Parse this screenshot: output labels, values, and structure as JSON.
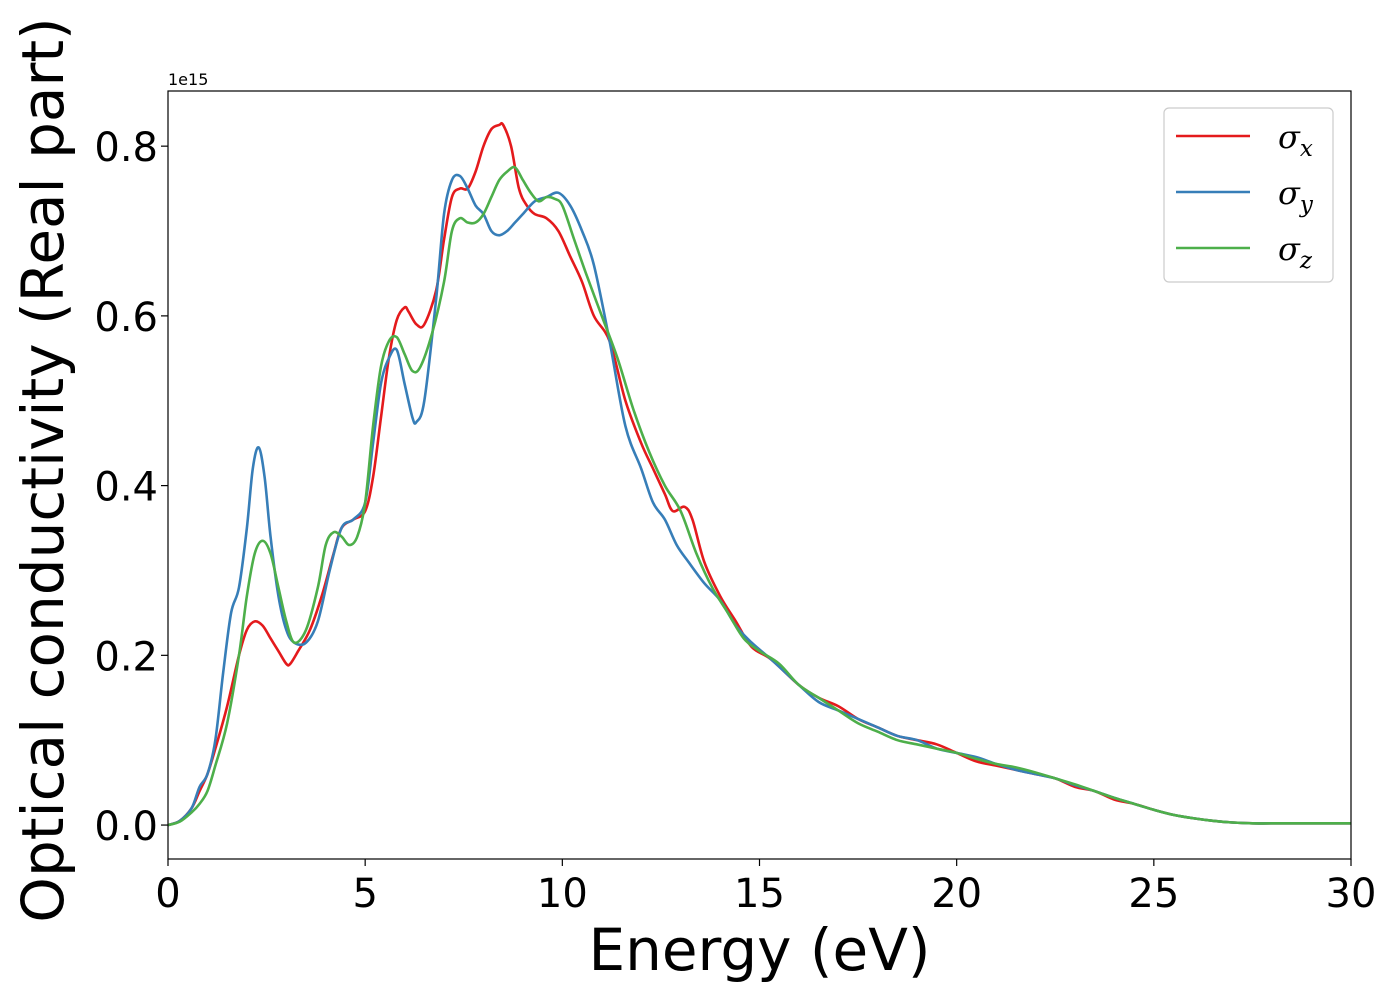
{
  "chart_data": {
    "type": "line",
    "xlabel": "Energy (eV)",
    "ylabel": "Optical conductivity (Real part)",
    "offset_text": "1e15",
    "xlim": [
      0,
      30
    ],
    "ylim": [
      -0.04,
      0.865
    ],
    "xticks": [
      0,
      5,
      10,
      15,
      20,
      25,
      30
    ],
    "xtick_labels": [
      "0",
      "5",
      "10",
      "15",
      "20",
      "25",
      "30"
    ],
    "yticks": [
      0.0,
      0.2,
      0.4,
      0.6,
      0.8
    ],
    "ytick_labels": [
      "0.0",
      "0.2",
      "0.4",
      "0.6",
      "0.8"
    ],
    "grid": false,
    "legend_position": "top-right",
    "series": [
      {
        "name": "σx",
        "label_base": "σ",
        "label_sub": "x",
        "color": "#e41a1c",
        "x": [
          0,
          0.3,
          0.6,
          0.8,
          1.0,
          1.2,
          1.5,
          1.8,
          2.0,
          2.2,
          2.4,
          2.6,
          2.8,
          3.0,
          3.1,
          3.3,
          3.6,
          3.9,
          4.2,
          4.4,
          4.7,
          5.0,
          5.2,
          5.4,
          5.6,
          5.8,
          6.0,
          6.1,
          6.3,
          6.5,
          6.8,
          7.0,
          7.2,
          7.4,
          7.6,
          7.8,
          8.0,
          8.2,
          8.4,
          8.5,
          8.7,
          8.9,
          9.1,
          9.3,
          9.6,
          9.9,
          10.2,
          10.5,
          10.8,
          11.2,
          11.6,
          12.0,
          12.3,
          12.6,
          12.8,
          13.1,
          13.3,
          13.6,
          14.0,
          14.4,
          14.8,
          15.3,
          16.0,
          16.5,
          17.0,
          17.5,
          18.0,
          18.5,
          19.0,
          19.5,
          20.0,
          20.5,
          21.0,
          21.5,
          22.0,
          22.5,
          23.0,
          23.5,
          24.0,
          24.5,
          25.0,
          25.5,
          26.0,
          26.5,
          27.0,
          27.5,
          28.0,
          29.0,
          30.0
        ],
        "y": [
          0.0,
          0.005,
          0.02,
          0.04,
          0.06,
          0.09,
          0.14,
          0.2,
          0.23,
          0.24,
          0.235,
          0.22,
          0.205,
          0.19,
          0.19,
          0.205,
          0.23,
          0.27,
          0.32,
          0.35,
          0.36,
          0.37,
          0.41,
          0.48,
          0.55,
          0.595,
          0.61,
          0.605,
          0.59,
          0.59,
          0.63,
          0.69,
          0.74,
          0.75,
          0.75,
          0.77,
          0.8,
          0.82,
          0.825,
          0.825,
          0.8,
          0.75,
          0.73,
          0.72,
          0.715,
          0.7,
          0.67,
          0.64,
          0.6,
          0.57,
          0.5,
          0.45,
          0.42,
          0.39,
          0.37,
          0.375,
          0.36,
          0.31,
          0.27,
          0.24,
          0.21,
          0.195,
          0.165,
          0.15,
          0.14,
          0.125,
          0.115,
          0.105,
          0.1,
          0.095,
          0.085,
          0.075,
          0.07,
          0.065,
          0.06,
          0.055,
          0.045,
          0.04,
          0.03,
          0.025,
          0.018,
          0.012,
          0.008,
          0.005,
          0.003,
          0.002,
          0.002,
          0.002,
          0.002
        ]
      },
      {
        "name": "σy",
        "label_base": "σ",
        "label_sub": "y",
        "color": "#377eb8",
        "x": [
          0,
          0.3,
          0.6,
          0.8,
          1.0,
          1.2,
          1.4,
          1.6,
          1.8,
          2.0,
          2.15,
          2.3,
          2.45,
          2.6,
          2.8,
          3.0,
          3.2,
          3.5,
          3.8,
          4.1,
          4.4,
          4.7,
          5.0,
          5.2,
          5.4,
          5.6,
          5.8,
          6.0,
          6.2,
          6.3,
          6.5,
          6.8,
          7.0,
          7.2,
          7.4,
          7.6,
          7.8,
          8.0,
          8.2,
          8.4,
          8.6,
          8.8,
          9.0,
          9.3,
          9.6,
          9.9,
          10.2,
          10.5,
          10.8,
          11.2,
          11.6,
          12.0,
          12.3,
          12.6,
          12.9,
          13.2,
          13.6,
          14.0,
          14.4,
          14.8,
          15.3,
          16.0,
          16.5,
          17.0,
          17.5,
          18.0,
          18.5,
          19.0,
          19.5,
          20.0,
          20.5,
          21.0,
          21.5,
          22.0,
          22.5,
          23.0,
          23.5,
          24.0,
          24.5,
          25.0,
          25.5,
          26.0,
          26.5,
          27.0,
          27.5,
          28.0,
          29.0,
          30.0
        ],
        "y": [
          0.0,
          0.005,
          0.02,
          0.045,
          0.06,
          0.1,
          0.18,
          0.25,
          0.28,
          0.35,
          0.42,
          0.445,
          0.41,
          0.34,
          0.27,
          0.23,
          0.215,
          0.215,
          0.24,
          0.3,
          0.35,
          0.36,
          0.38,
          0.45,
          0.52,
          0.55,
          0.56,
          0.52,
          0.48,
          0.475,
          0.5,
          0.62,
          0.72,
          0.76,
          0.765,
          0.75,
          0.73,
          0.72,
          0.7,
          0.695,
          0.7,
          0.71,
          0.72,
          0.735,
          0.74,
          0.745,
          0.73,
          0.7,
          0.66,
          0.57,
          0.47,
          0.42,
          0.38,
          0.36,
          0.33,
          0.31,
          0.285,
          0.265,
          0.235,
          0.215,
          0.195,
          0.165,
          0.145,
          0.135,
          0.125,
          0.115,
          0.105,
          0.1,
          0.09,
          0.085,
          0.08,
          0.072,
          0.065,
          0.06,
          0.055,
          0.047,
          0.04,
          0.032,
          0.025,
          0.018,
          0.012,
          0.008,
          0.005,
          0.003,
          0.002,
          0.002,
          0.002,
          0.002
        ]
      },
      {
        "name": "σz",
        "label_base": "σ",
        "label_sub": "z",
        "color": "#4daf4a",
        "x": [
          0,
          0.3,
          0.6,
          0.8,
          1.0,
          1.2,
          1.5,
          1.8,
          2.0,
          2.2,
          2.4,
          2.6,
          2.8,
          3.0,
          3.2,
          3.5,
          3.8,
          4.0,
          4.2,
          4.4,
          4.6,
          4.8,
          5.0,
          5.2,
          5.4,
          5.6,
          5.8,
          6.0,
          6.2,
          6.4,
          6.7,
          7.0,
          7.2,
          7.4,
          7.6,
          7.8,
          8.0,
          8.2,
          8.4,
          8.6,
          8.8,
          9.0,
          9.2,
          9.4,
          9.6,
          9.8,
          10.0,
          10.3,
          10.6,
          11.0,
          11.4,
          11.8,
          12.2,
          12.6,
          13.0,
          13.4,
          13.8,
          14.2,
          14.6,
          15.0,
          15.5,
          16.0,
          16.5,
          17.0,
          17.5,
          18.0,
          18.5,
          19.0,
          19.5,
          20.0,
          20.5,
          21.0,
          21.5,
          22.0,
          22.5,
          23.0,
          23.5,
          24.0,
          24.5,
          25.0,
          25.5,
          26.0,
          26.5,
          27.0,
          27.5,
          28.0,
          29.0,
          30.0
        ],
        "y": [
          0.0,
          0.004,
          0.015,
          0.025,
          0.04,
          0.07,
          0.12,
          0.2,
          0.27,
          0.32,
          0.335,
          0.32,
          0.28,
          0.24,
          0.215,
          0.23,
          0.28,
          0.33,
          0.345,
          0.34,
          0.33,
          0.34,
          0.38,
          0.47,
          0.54,
          0.57,
          0.575,
          0.555,
          0.535,
          0.54,
          0.58,
          0.64,
          0.7,
          0.715,
          0.71,
          0.71,
          0.72,
          0.74,
          0.76,
          0.77,
          0.775,
          0.76,
          0.745,
          0.735,
          0.74,
          0.738,
          0.73,
          0.69,
          0.65,
          0.6,
          0.55,
          0.49,
          0.44,
          0.4,
          0.37,
          0.32,
          0.28,
          0.25,
          0.22,
          0.205,
          0.19,
          0.165,
          0.15,
          0.135,
          0.12,
          0.11,
          0.1,
          0.095,
          0.09,
          0.085,
          0.078,
          0.072,
          0.068,
          0.062,
          0.055,
          0.048,
          0.04,
          0.032,
          0.025,
          0.018,
          0.012,
          0.008,
          0.005,
          0.003,
          0.002,
          0.002,
          0.002,
          0.002
        ]
      }
    ]
  }
}
